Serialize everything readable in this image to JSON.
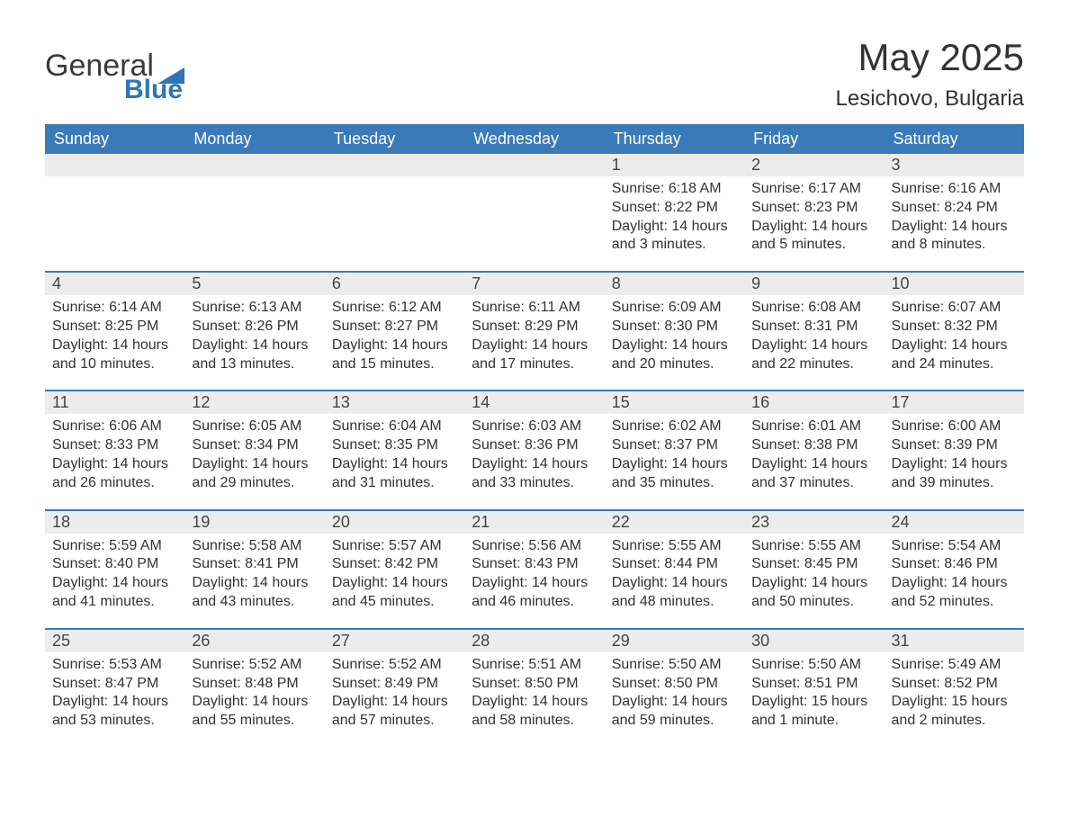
{
  "logo": {
    "text1": "General",
    "text2": "Blue",
    "brand_color": "#2f76b8"
  },
  "title": "May 2025",
  "location": "Lesichovo, Bulgaria",
  "colors": {
    "header_bg": "#3a7ab8",
    "header_text": "#ffffff",
    "daynum_bg": "#ececec",
    "sep": "#3a7ab8",
    "text": "#333333"
  },
  "dow": [
    "Sunday",
    "Monday",
    "Tuesday",
    "Wednesday",
    "Thursday",
    "Friday",
    "Saturday"
  ],
  "weeks": [
    [
      null,
      null,
      null,
      null,
      {
        "d": "1",
        "sr": "6:18 AM",
        "ss": "8:22 PM",
        "dl": "14 hours and 3 minutes."
      },
      {
        "d": "2",
        "sr": "6:17 AM",
        "ss": "8:23 PM",
        "dl": "14 hours and 5 minutes."
      },
      {
        "d": "3",
        "sr": "6:16 AM",
        "ss": "8:24 PM",
        "dl": "14 hours and 8 minutes."
      }
    ],
    [
      {
        "d": "4",
        "sr": "6:14 AM",
        "ss": "8:25 PM",
        "dl": "14 hours and 10 minutes."
      },
      {
        "d": "5",
        "sr": "6:13 AM",
        "ss": "8:26 PM",
        "dl": "14 hours and 13 minutes."
      },
      {
        "d": "6",
        "sr": "6:12 AM",
        "ss": "8:27 PM",
        "dl": "14 hours and 15 minutes."
      },
      {
        "d": "7",
        "sr": "6:11 AM",
        "ss": "8:29 PM",
        "dl": "14 hours and 17 minutes."
      },
      {
        "d": "8",
        "sr": "6:09 AM",
        "ss": "8:30 PM",
        "dl": "14 hours and 20 minutes."
      },
      {
        "d": "9",
        "sr": "6:08 AM",
        "ss": "8:31 PM",
        "dl": "14 hours and 22 minutes."
      },
      {
        "d": "10",
        "sr": "6:07 AM",
        "ss": "8:32 PM",
        "dl": "14 hours and 24 minutes."
      }
    ],
    [
      {
        "d": "11",
        "sr": "6:06 AM",
        "ss": "8:33 PM",
        "dl": "14 hours and 26 minutes."
      },
      {
        "d": "12",
        "sr": "6:05 AM",
        "ss": "8:34 PM",
        "dl": "14 hours and 29 minutes."
      },
      {
        "d": "13",
        "sr": "6:04 AM",
        "ss": "8:35 PM",
        "dl": "14 hours and 31 minutes."
      },
      {
        "d": "14",
        "sr": "6:03 AM",
        "ss": "8:36 PM",
        "dl": "14 hours and 33 minutes."
      },
      {
        "d": "15",
        "sr": "6:02 AM",
        "ss": "8:37 PM",
        "dl": "14 hours and 35 minutes."
      },
      {
        "d": "16",
        "sr": "6:01 AM",
        "ss": "8:38 PM",
        "dl": "14 hours and 37 minutes."
      },
      {
        "d": "17",
        "sr": "6:00 AM",
        "ss": "8:39 PM",
        "dl": "14 hours and 39 minutes."
      }
    ],
    [
      {
        "d": "18",
        "sr": "5:59 AM",
        "ss": "8:40 PM",
        "dl": "14 hours and 41 minutes."
      },
      {
        "d": "19",
        "sr": "5:58 AM",
        "ss": "8:41 PM",
        "dl": "14 hours and 43 minutes."
      },
      {
        "d": "20",
        "sr": "5:57 AM",
        "ss": "8:42 PM",
        "dl": "14 hours and 45 minutes."
      },
      {
        "d": "21",
        "sr": "5:56 AM",
        "ss": "8:43 PM",
        "dl": "14 hours and 46 minutes."
      },
      {
        "d": "22",
        "sr": "5:55 AM",
        "ss": "8:44 PM",
        "dl": "14 hours and 48 minutes."
      },
      {
        "d": "23",
        "sr": "5:55 AM",
        "ss": "8:45 PM",
        "dl": "14 hours and 50 minutes."
      },
      {
        "d": "24",
        "sr": "5:54 AM",
        "ss": "8:46 PM",
        "dl": "14 hours and 52 minutes."
      }
    ],
    [
      {
        "d": "25",
        "sr": "5:53 AM",
        "ss": "8:47 PM",
        "dl": "14 hours and 53 minutes."
      },
      {
        "d": "26",
        "sr": "5:52 AM",
        "ss": "8:48 PM",
        "dl": "14 hours and 55 minutes."
      },
      {
        "d": "27",
        "sr": "5:52 AM",
        "ss": "8:49 PM",
        "dl": "14 hours and 57 minutes."
      },
      {
        "d": "28",
        "sr": "5:51 AM",
        "ss": "8:50 PM",
        "dl": "14 hours and 58 minutes."
      },
      {
        "d": "29",
        "sr": "5:50 AM",
        "ss": "8:50 PM",
        "dl": "14 hours and 59 minutes."
      },
      {
        "d": "30",
        "sr": "5:50 AM",
        "ss": "8:51 PM",
        "dl": "15 hours and 1 minute."
      },
      {
        "d": "31",
        "sr": "5:49 AM",
        "ss": "8:52 PM",
        "dl": "15 hours and 2 minutes."
      }
    ]
  ],
  "labels": {
    "sunrise": "Sunrise: ",
    "sunset": "Sunset: ",
    "daylight": "Daylight: "
  }
}
